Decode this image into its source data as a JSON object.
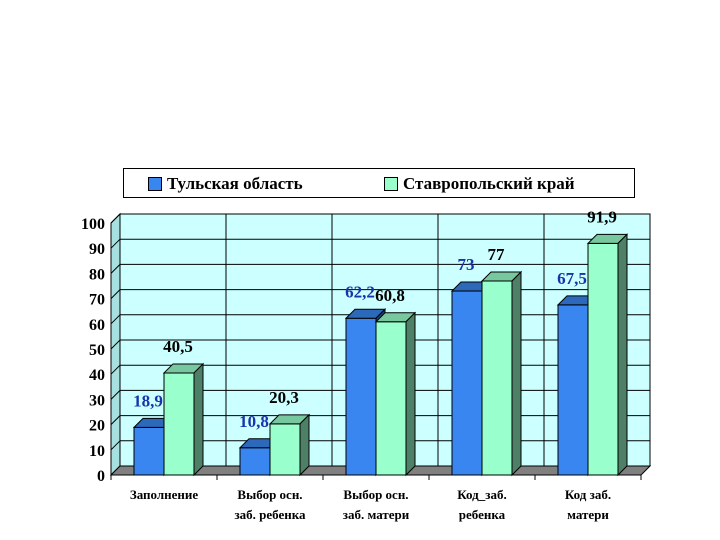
{
  "legend": {
    "series1": "Тульская область",
    "series2": "Ставропольский край"
  },
  "colors": {
    "series1": "#3a86f0",
    "series2": "#99ffcc",
    "plot_bg": "#ccffff",
    "floor": "#808080",
    "label1": "#1a33aa",
    "label2": "#000000"
  },
  "chart_data": {
    "type": "bar",
    "categories": [
      "Заполнение",
      "Выбор осн. заб. ребенка",
      "Выбор осн. заб. матери",
      "Код_заб. ребенка",
      "Код заб. матери"
    ],
    "category_lines": [
      [
        "Заполнение"
      ],
      [
        "Выбор осн.",
        "заб. ребенка"
      ],
      [
        "Выбор осн.",
        "заб. матери"
      ],
      [
        "Код_заб.",
        "ребенка"
      ],
      [
        "Код заб.",
        "матери"
      ]
    ],
    "series": [
      {
        "name": "Тульская область",
        "values": [
          18.9,
          10.8,
          62.2,
          73,
          67.5
        ],
        "labels": [
          "18,9",
          "10,8",
          "62,2",
          "73",
          "67,5"
        ]
      },
      {
        "name": "Ставропольский край",
        "values": [
          40.5,
          20.3,
          60.8,
          77,
          91.9
        ],
        "labels": [
          "40,5",
          "20,3",
          "60,8",
          "77",
          "91,9"
        ]
      }
    ],
    "yticks": [
      "0",
      "10",
      "20",
      "30",
      "40",
      "50",
      "60",
      "70",
      "80",
      "90",
      "100"
    ],
    "ylim": [
      0,
      100
    ],
    "grid": true,
    "legend_position": "top"
  }
}
